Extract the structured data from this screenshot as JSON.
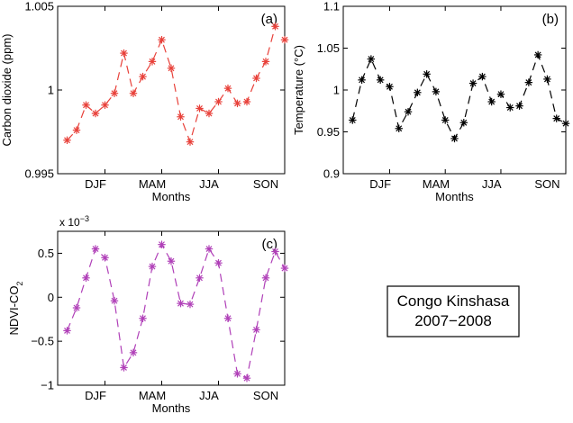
{
  "chart_data": [
    {
      "type": "line",
      "panel_tag": "(a)",
      "ylabel": "Carbon dioxide (ppm)",
      "xlabel": "Months",
      "exponent_label": "",
      "ylim": [
        0.995,
        1.005
      ],
      "yticks": [
        0.995,
        1,
        1.005
      ],
      "ytick_labels": [
        "0.995",
        "1",
        "1.005"
      ],
      "xlim": [
        0.5,
        12.5
      ],
      "xticks": [
        3,
        6,
        9
      ],
      "xtick_labels": [
        "DJF",
        "MAM",
        "JJA",
        "SON"
      ],
      "xtick_label_positions": [
        2.5,
        5.5,
        8.5,
        11.5
      ],
      "color": "#e8413a",
      "series": [
        {
          "x": [
            1,
            1.5,
            2,
            2.5,
            3,
            3.5,
            4,
            4.5,
            5,
            5.5,
            6,
            6.5,
            7,
            7.5,
            8,
            8.5,
            9,
            9.5,
            10,
            10.5,
            11,
            11.5,
            12
          ],
          "values": [
            0.997,
            0.9976,
            0.9991,
            0.9986,
            0.9991,
            0.9998,
            1.0022,
            0.9998,
            1.0008,
            1.0017,
            1.003,
            1.0013,
            0.9984,
            0.9969,
            0.9989,
            0.9986,
            0.9993,
            1.0001,
            0.9992,
            0.9993,
            1.0007,
            1.0017,
            1.0038
          ]
        }
      ],
      "extra_points": {
        "x": [
          12.5
        ],
        "values": [
          1.003
        ]
      }
    },
    {
      "type": "line",
      "panel_tag": "(b)",
      "ylabel": "Temperature (°C)",
      "xlabel": "Months",
      "exponent_label": "",
      "ylim": [
        0.9,
        1.1
      ],
      "yticks": [
        0.9,
        0.95,
        1,
        1.05,
        1.1
      ],
      "ytick_labels": [
        "0.9",
        "0.95",
        "1",
        "1.05",
        "1.1"
      ],
      "xlim": [
        0.5,
        12.5
      ],
      "xticks": [
        3,
        6,
        9
      ],
      "xtick_labels": [
        "DJF",
        "MAM",
        "JJA",
        "SON"
      ],
      "xtick_label_positions": [
        2.5,
        5.5,
        8.5,
        11.5
      ],
      "color": "#000000",
      "series": [
        {
          "x": [
            1,
            1.5,
            2,
            2.5,
            3,
            3.5,
            4,
            4.5,
            5,
            5.5,
            6,
            6.5,
            7,
            7.5,
            8,
            8.5,
            9,
            9.5,
            10,
            10.5,
            11,
            11.5,
            12,
            12.5
          ],
          "values": [
            0.964,
            1.012,
            1.037,
            1.012,
            1.004,
            0.954,
            0.974,
            0.997,
            1.019,
            0.998,
            0.964,
            0.942,
            0.961,
            1.008,
            1.016,
            0.986,
            0.995,
            0.979,
            0.981,
            1.009,
            1.042,
            1.013,
            0.966,
            0.96
          ]
        }
      ]
    },
    {
      "type": "line",
      "panel_tag": "(c)",
      "ylabel": "NDVI-CO",
      "ylabel_sub": "2",
      "xlabel": "Months",
      "exponent_label": "x 10",
      "exponent_sup": "−3",
      "ylim": [
        -1,
        0.75
      ],
      "yticks": [
        -1,
        -0.5,
        0,
        0.5
      ],
      "ytick_labels": [
        "−1",
        "−0.5",
        "0",
        "0.5"
      ],
      "xlim": [
        0.5,
        12.5
      ],
      "xticks": [
        3,
        6,
        9
      ],
      "xtick_labels": [
        "DJF",
        "MAM",
        "JJA",
        "SON"
      ],
      "xtick_label_positions": [
        2.5,
        5.5,
        8.5,
        11.5
      ],
      "color": "#b040b8",
      "series": [
        {
          "x": [
            1,
            1.5,
            2,
            2.5,
            3,
            3.5,
            4,
            4.5,
            5,
            5.5,
            6,
            6.5,
            7,
            7.5,
            8,
            8.5,
            9,
            9.5,
            10,
            10.5,
            11,
            11.5,
            12,
            12.5
          ],
          "values": [
            -0.38,
            -0.12,
            0.22,
            0.55,
            0.45,
            -0.04,
            -0.8,
            -0.63,
            -0.24,
            0.35,
            0.6,
            0.41,
            -0.07,
            -0.08,
            0.22,
            0.55,
            0.39,
            -0.24,
            -0.87,
            -0.92,
            -0.37,
            0.22,
            0.52,
            0.33
          ]
        }
      ]
    }
  ],
  "info_box": {
    "line1": "Congo Kinshasa",
    "line2": "2007−2008"
  }
}
